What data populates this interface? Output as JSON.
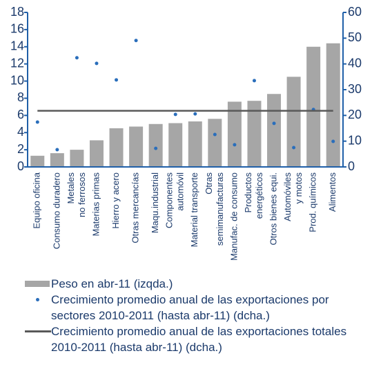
{
  "chart_data": {
    "type": "bar",
    "categories": [
      [
        "Equipo oficina"
      ],
      [
        "Consumo duradero"
      ],
      [
        "Metales",
        "no ferrosos"
      ],
      [
        "Materias primas"
      ],
      [
        "Hierro y acero"
      ],
      [
        "Otras mercancías"
      ],
      [
        "Maqu.industrial"
      ],
      [
        "Componentes",
        "automóvil"
      ],
      [
        "Material transporte"
      ],
      [
        "Otras",
        "semimanufacturas"
      ],
      [
        "Manufac. de consumo"
      ],
      [
        "Productos",
        "energéticos"
      ],
      [
        "Otros bienes equi."
      ],
      [
        "Automóviles",
        "y motos"
      ],
      [
        "Prod. químicos"
      ],
      [
        "Alimentos"
      ]
    ],
    "series": [
      {
        "name": "Peso en abr-11 (izqda.)",
        "type": "bar",
        "color": "#a6a6a6",
        "values": [
          1.3,
          1.6,
          2.0,
          3.1,
          4.5,
          4.7,
          5.0,
          5.1,
          5.3,
          5.6,
          7.6,
          7.7,
          8.5,
          10.5,
          14.0,
          14.4
        ]
      },
      {
        "name": "Crecimiento promedio anual de las exportaciones por sectores 2010-2011 (hasta abr-11) (dcha.)",
        "type": "scatter",
        "axis": "y2",
        "color": "#2a6ebb",
        "values": [
          17.4,
          6.7,
          42.4,
          40.2,
          33.8,
          49.1,
          7.2,
          20.4,
          20.6,
          12.6,
          8.6,
          33.5,
          16.9,
          7.5,
          22.3,
          9.9
        ]
      },
      {
        "name": "Crecimiento promedio anual de las exportaciones totales 2010-2011 (hasta abr-11) (dcha.)",
        "type": "line",
        "axis": "y2",
        "color": "#595959",
        "values": [
          21.8,
          21.8,
          21.8,
          21.8,
          21.8,
          21.8,
          21.8,
          21.8,
          21.8,
          21.8,
          21.8,
          21.8,
          21.8,
          21.8,
          21.8,
          21.8
        ]
      }
    ],
    "ylim": [
      0,
      18
    ],
    "yticks": [
      0,
      2,
      4,
      6,
      8,
      10,
      12,
      14,
      16,
      18
    ],
    "y2lim": [
      0,
      60
    ],
    "y2ticks": [
      0,
      10,
      20,
      30,
      40,
      50,
      60
    ],
    "axis_color": "#1f5fa8"
  }
}
